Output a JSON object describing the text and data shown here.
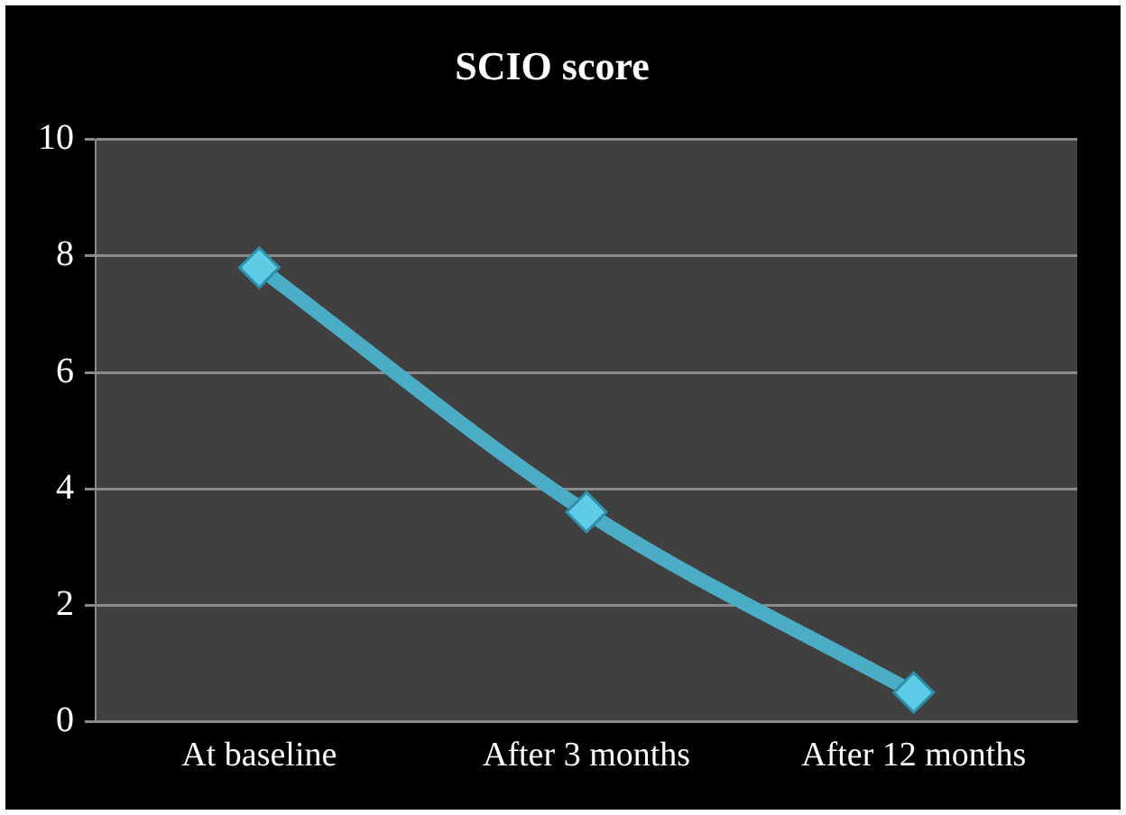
{
  "chart_data": {
    "type": "line",
    "title": "SCIO score",
    "categories": [
      "At baseline",
      "After 3 months",
      "After 12 months"
    ],
    "series": [
      {
        "color": "#4bacc6",
        "values": [
          7.8,
          3.6,
          0.5
        ]
      }
    ],
    "ylim": [
      0,
      10
    ],
    "yticks": [
      0,
      2,
      4,
      6,
      8,
      10
    ],
    "grid": "y",
    "legend": false,
    "marker": "diamond",
    "line_style": "solid"
  }
}
